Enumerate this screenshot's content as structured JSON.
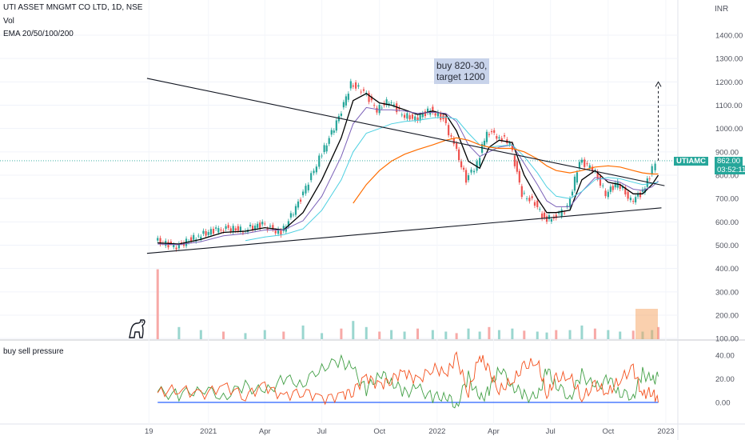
{
  "header": {
    "symbol_line": "UTI ASSET MNGMT CO LTD, 1D, NSE",
    "vol_label": "Vol",
    "ema_label": "EMA 20/50/100/200",
    "currency": "INR"
  },
  "price_tag": {
    "ticker": "UTIAMC",
    "price": "862.00",
    "countdown": "03:52:11"
  },
  "annotation": {
    "line1": "buy 820-30,",
    "line2": "target 1200"
  },
  "indicator": {
    "label": "buy sell pressure"
  },
  "colors": {
    "up": "#26a69a",
    "down": "#ef5350",
    "ema20": "#000000",
    "ema50": "#7b61b8",
    "ema100": "#4dd0e1",
    "ema200": "#ff6d00",
    "buy_line": "#43a047",
    "sell_line": "#f4511e",
    "baseline": "#2962ff"
  },
  "chart_data": [
    {
      "type": "line",
      "title": "UTI ASSET MNGMT CO LTD, 1D, NSE",
      "x_ticks": [
        "19",
        "2021",
        "Apr",
        "Jul",
        "Oct",
        "2022",
        "Apr",
        "Jul",
        "Oct",
        "2023"
      ],
      "y_ticks": [
        "1400.00",
        "1300.00",
        "1200.00",
        "1100.00",
        "1000.00",
        "900.00",
        "800.00",
        "700.00",
        "600.00",
        "500.00",
        "400.00",
        "300.00",
        "200.00",
        "100.00"
      ],
      "ylim": [
        60,
        1440
      ],
      "series": [
        {
          "name": "Price",
          "dates": [
            "2020-10-12",
            "2020-11-15",
            "2020-12-20",
            "2021-01-25",
            "2021-03-01",
            "2021-04-01",
            "2021-05-01",
            "2021-06-01",
            "2021-07-01",
            "2021-08-01",
            "2021-08-20",
            "2021-09-10",
            "2021-10-01",
            "2021-10-20",
            "2021-11-10",
            "2021-12-01",
            "2021-12-25",
            "2022-01-15",
            "2022-02-01",
            "2022-02-20",
            "2022-03-10",
            "2022-03-25",
            "2022-04-10",
            "2022-05-01",
            "2022-05-20",
            "2022-06-10",
            "2022-06-25",
            "2022-07-10",
            "2022-08-01",
            "2022-08-20",
            "2022-09-10",
            "2022-10-01",
            "2022-10-20",
            "2022-11-10",
            "2022-11-25",
            "2022-12-10",
            "2022-12-20"
          ],
          "values": [
            520,
            495,
            540,
            575,
            565,
            590,
            550,
            700,
            870,
            1050,
            1190,
            1160,
            1080,
            1120,
            1060,
            1040,
            1080,
            1040,
            930,
            780,
            850,
            990,
            970,
            940,
            720,
            680,
            610,
            620,
            660,
            860,
            830,
            720,
            770,
            690,
            720,
            790,
            862
          ]
        },
        {
          "name": "EMA 20",
          "values": [
            510,
            505,
            525,
            555,
            560,
            575,
            565,
            640,
            780,
            960,
            1120,
            1150,
            1110,
            1100,
            1080,
            1060,
            1075,
            1060,
            990,
            860,
            830,
            920,
            950,
            940,
            800,
            700,
            640,
            640,
            650,
            780,
            820,
            770,
            760,
            720,
            720,
            760,
            800
          ]
        },
        {
          "name": "EMA 50",
          "values": [
            505,
            502,
            515,
            540,
            550,
            565,
            565,
            605,
            710,
            880,
            1020,
            1090,
            1080,
            1080,
            1075,
            1065,
            1070,
            1065,
            1030,
            930,
            880,
            900,
            920,
            930,
            850,
            760,
            690,
            665,
            665,
            730,
            790,
            780,
            770,
            740,
            735,
            750,
            775
          ]
        },
        {
          "name": "EMA 100",
          "values": [
            null,
            null,
            null,
            null,
            520,
            535,
            545,
            570,
            650,
            780,
            900,
            980,
            1000,
            1020,
            1030,
            1035,
            1045,
            1050,
            1040,
            980,
            930,
            920,
            925,
            930,
            880,
            810,
            750,
            710,
            700,
            730,
            780,
            790,
            785,
            770,
            760,
            765,
            770
          ]
        },
        {
          "name": "EMA 200",
          "values": [
            null,
            null,
            null,
            null,
            null,
            null,
            null,
            null,
            null,
            null,
            680,
            760,
            820,
            860,
            890,
            910,
            930,
            950,
            960,
            950,
            930,
            920,
            915,
            915,
            900,
            870,
            840,
            820,
            810,
            820,
            835,
            840,
            835,
            820,
            810,
            805,
            805
          ]
        }
      ],
      "trendlines": [
        {
          "label": "upper",
          "from": [
            "2020-09-25",
            1215
          ],
          "to": [
            "2022-12-30",
            755
          ]
        },
        {
          "label": "lower",
          "from": [
            "2020-09-25",
            465
          ],
          "to": [
            "2022-12-25",
            660
          ]
        }
      ],
      "projection": {
        "from": [
          "2022-12-20",
          862
        ],
        "to": [
          "2022-12-20",
          1200
        ]
      }
    },
    {
      "type": "bar",
      "title": "Vol",
      "series": [
        {
          "name": "Vol",
          "values": [
            230,
            40,
            30,
            25,
            20,
            30,
            25,
            45,
            20,
            35,
            60,
            40,
            25,
            30,
            25,
            35,
            30,
            25,
            20,
            35,
            25,
            40,
            30,
            35,
            28,
            25,
            22,
            30,
            30,
            45,
            35,
            30,
            25,
            28,
            25,
            30,
            40
          ]
        }
      ]
    },
    {
      "type": "line",
      "title": "buy sell pressure",
      "y_ticks": [
        "40.00",
        "20.00",
        "0.00"
      ],
      "ylim": [
        -12,
        48
      ],
      "series": [
        {
          "name": "buy",
          "values": [
            9,
            6,
            12,
            5,
            14,
            8,
            20,
            16,
            30,
            35,
            28,
            10,
            25,
            18,
            8,
            12,
            4,
            6,
            -3,
            22,
            2,
            10,
            30,
            14,
            6,
            3,
            28,
            15,
            4,
            24,
            12,
            20,
            8,
            5,
            25,
            18,
            22
          ]
        },
        {
          "name": "sell",
          "values": [
            8,
            12,
            6,
            14,
            6,
            14,
            5,
            10,
            3,
            6,
            10,
            22,
            14,
            20,
            26,
            18,
            30,
            24,
            38,
            8,
            40,
            26,
            10,
            18,
            30,
            35,
            6,
            20,
            22,
            4,
            14,
            8,
            20,
            28,
            6,
            10,
            0
          ]
        }
      ]
    }
  ]
}
